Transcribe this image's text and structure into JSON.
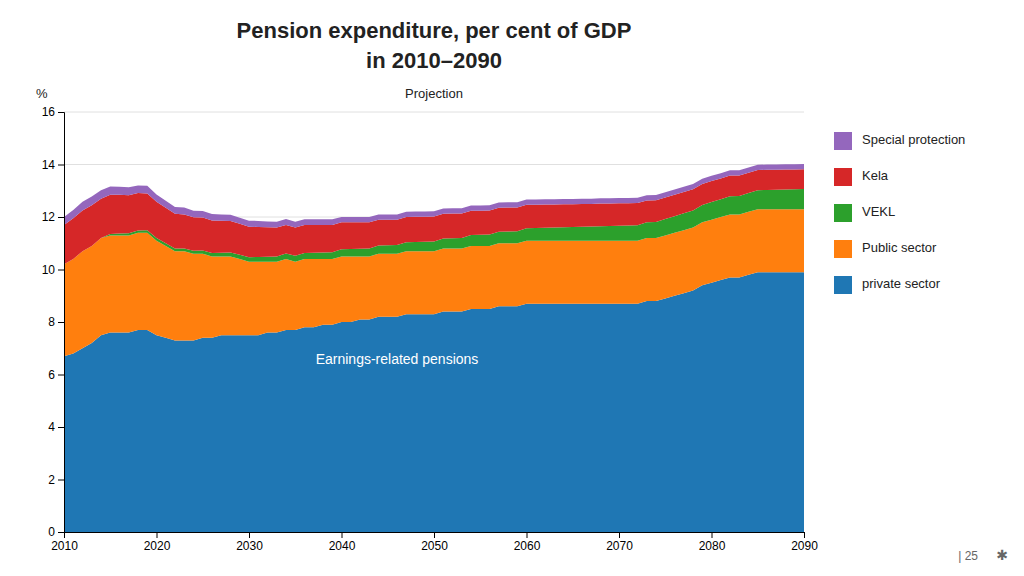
{
  "chart_data": {
    "type": "area",
    "stacked": true,
    "title": "Pension expenditure, per cent of GDP",
    "subtitle": "in 2010–2090",
    "ylabel": "%",
    "annotations": [
      "Projection",
      "Earnings-related pensions",
      "| 25",
      "✱"
    ],
    "grid": true,
    "legend": "right",
    "xlim": [
      2010,
      2090
    ],
    "xticks": [
      2010,
      2020,
      2030,
      2040,
      2050,
      2060,
      2070,
      2080,
      2090
    ],
    "ylim": [
      0,
      16
    ],
    "yticks": [
      0,
      2,
      4,
      6,
      8,
      10,
      12,
      14,
      16
    ],
    "x": [
      2010,
      2011,
      2012,
      2013,
      2014,
      2015,
      2016,
      2017,
      2018,
      2019,
      2020,
      2021,
      2022,
      2023,
      2024,
      2025,
      2026,
      2027,
      2028,
      2029,
      2030,
      2031,
      2032,
      2033,
      2034,
      2035,
      2036,
      2037,
      2038,
      2039,
      2040,
      2041,
      2042,
      2043,
      2044,
      2045,
      2046,
      2047,
      2048,
      2049,
      2050,
      2051,
      2052,
      2053,
      2054,
      2055,
      2056,
      2057,
      2058,
      2059,
      2060,
      2061,
      2062,
      2063,
      2064,
      2065,
      2066,
      2067,
      2068,
      2069,
      2070,
      2071,
      2072,
      2073,
      2074,
      2075,
      2076,
      2077,
      2078,
      2079,
      2080,
      2081,
      2082,
      2083,
      2084,
      2085,
      2086,
      2087,
      2088,
      2089,
      2090
    ],
    "series": [
      {
        "name": "private sector",
        "values": [
          6.7,
          6.8,
          7.0,
          7.2,
          7.5,
          7.6,
          7.6,
          7.6,
          7.7,
          7.7,
          7.5,
          7.4,
          7.3,
          7.3,
          7.3,
          7.4,
          7.4,
          7.5,
          7.5,
          7.5,
          7.5,
          7.5,
          7.6,
          7.6,
          7.7,
          7.7,
          7.8,
          7.8,
          7.9,
          7.9,
          8.0,
          8.0,
          8.1,
          8.1,
          8.2,
          8.2,
          8.2,
          8.3,
          8.3,
          8.3,
          8.3,
          8.4,
          8.4,
          8.4,
          8.5,
          8.5,
          8.5,
          8.6,
          8.6,
          8.6,
          8.7,
          8.7,
          8.7,
          8.7,
          8.7,
          8.7,
          8.7,
          8.7,
          8.7,
          8.7,
          8.7,
          8.7,
          8.7,
          8.8,
          8.8,
          8.9,
          9.0,
          9.1,
          9.2,
          9.4,
          9.5,
          9.6,
          9.7,
          9.7,
          9.8,
          9.9,
          9.9,
          9.9,
          9.9,
          9.9,
          9.9
        ]
      },
      {
        "name": "Public sector",
        "values": [
          3.5,
          3.6,
          3.7,
          3.7,
          3.7,
          3.7,
          3.7,
          3.7,
          3.7,
          3.7,
          3.6,
          3.5,
          3.4,
          3.4,
          3.3,
          3.2,
          3.1,
          3.0,
          3.0,
          2.9,
          2.8,
          2.8,
          2.7,
          2.7,
          2.7,
          2.6,
          2.6,
          2.6,
          2.5,
          2.5,
          2.5,
          2.5,
          2.4,
          2.4,
          2.4,
          2.4,
          2.4,
          2.4,
          2.4,
          2.4,
          2.4,
          2.4,
          2.4,
          2.4,
          2.4,
          2.4,
          2.4,
          2.4,
          2.4,
          2.4,
          2.4,
          2.4,
          2.4,
          2.4,
          2.4,
          2.4,
          2.4,
          2.4,
          2.4,
          2.4,
          2.4,
          2.4,
          2.4,
          2.4,
          2.4,
          2.4,
          2.4,
          2.4,
          2.4,
          2.4,
          2.4,
          2.4,
          2.4,
          2.4,
          2.4,
          2.4,
          2.4,
          2.4,
          2.4,
          2.4,
          2.4
        ]
      },
      {
        "name": "VEKL",
        "values": [
          0.0,
          0.0,
          0.0,
          0.0,
          0.0,
          0.05,
          0.07,
          0.08,
          0.09,
          0.1,
          0.1,
          0.1,
          0.1,
          0.1,
          0.11,
          0.12,
          0.13,
          0.14,
          0.15,
          0.16,
          0.17,
          0.18,
          0.19,
          0.2,
          0.21,
          0.22,
          0.23,
          0.24,
          0.25,
          0.26,
          0.27,
          0.28,
          0.29,
          0.3,
          0.31,
          0.32,
          0.33,
          0.34,
          0.35,
          0.36,
          0.37,
          0.38,
          0.39,
          0.4,
          0.41,
          0.42,
          0.43,
          0.44,
          0.45,
          0.46,
          0.47,
          0.48,
          0.49,
          0.5,
          0.51,
          0.52,
          0.53,
          0.54,
          0.55,
          0.56,
          0.57,
          0.58,
          0.59,
          0.6,
          0.61,
          0.62,
          0.63,
          0.64,
          0.65,
          0.66,
          0.67,
          0.68,
          0.69,
          0.7,
          0.71,
          0.72,
          0.73,
          0.74,
          0.75,
          0.76,
          0.77
        ]
      },
      {
        "name": "Kela",
        "values": [
          1.5,
          1.55,
          1.55,
          1.55,
          1.5,
          1.5,
          1.48,
          1.45,
          1.42,
          1.4,
          1.38,
          1.35,
          1.32,
          1.3,
          1.28,
          1.26,
          1.24,
          1.22,
          1.2,
          1.18,
          1.16,
          1.14,
          1.12,
          1.1,
          1.09,
          1.08,
          1.07,
          1.06,
          1.05,
          1.04,
          1.03,
          1.02,
          1.01,
          1.0,
          0.99,
          0.98,
          0.97,
          0.96,
          0.96,
          0.95,
          0.95,
          0.94,
          0.94,
          0.93,
          0.93,
          0.92,
          0.92,
          0.91,
          0.91,
          0.9,
          0.9,
          0.89,
          0.89,
          0.88,
          0.88,
          0.87,
          0.87,
          0.86,
          0.86,
          0.85,
          0.85,
          0.84,
          0.84,
          0.83,
          0.83,
          0.82,
          0.82,
          0.81,
          0.81,
          0.8,
          0.8,
          0.79,
          0.79,
          0.78,
          0.78,
          0.77,
          0.77,
          0.76,
          0.76,
          0.75,
          0.75
        ]
      },
      {
        "name": "Special protection",
        "values": [
          0.3,
          0.32,
          0.33,
          0.33,
          0.32,
          0.31,
          0.3,
          0.3,
          0.29,
          0.29,
          0.28,
          0.27,
          0.26,
          0.26,
          0.25,
          0.25,
          0.24,
          0.24,
          0.24,
          0.23,
          0.23,
          0.23,
          0.22,
          0.22,
          0.22,
          0.22,
          0.21,
          0.21,
          0.21,
          0.21,
          0.2,
          0.2,
          0.2,
          0.2,
          0.2,
          0.2,
          0.2,
          0.2,
          0.2,
          0.2,
          0.2,
          0.2,
          0.2,
          0.2,
          0.2,
          0.2,
          0.2,
          0.2,
          0.2,
          0.2,
          0.2,
          0.2,
          0.2,
          0.2,
          0.2,
          0.2,
          0.2,
          0.2,
          0.2,
          0.2,
          0.2,
          0.2,
          0.2,
          0.2,
          0.2,
          0.2,
          0.2,
          0.2,
          0.2,
          0.2,
          0.2,
          0.2,
          0.2,
          0.2,
          0.2,
          0.2,
          0.2,
          0.2,
          0.2,
          0.2,
          0.2
        ]
      }
    ]
  }
}
